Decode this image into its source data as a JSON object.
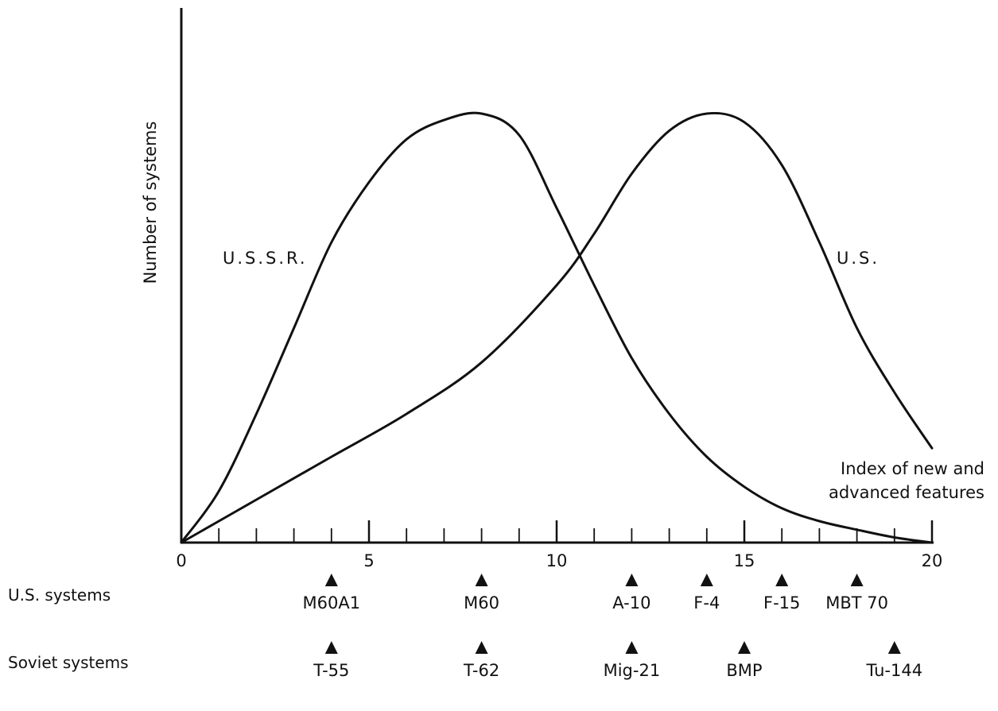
{
  "chart_data": {
    "type": "line",
    "xlabel_lines": [
      "Index of new and",
      "advanced features"
    ],
    "ylabel": "Number of systems",
    "xlim": [
      0,
      20
    ],
    "x_ticks": [
      0,
      5,
      10,
      15,
      20
    ],
    "series": [
      {
        "name": "U.S.S.R.",
        "color": "#111111",
        "points": [
          [
            0,
            0
          ],
          [
            1,
            0.12
          ],
          [
            2,
            0.3
          ],
          [
            3,
            0.5
          ],
          [
            4,
            0.7
          ],
          [
            5,
            0.84
          ],
          [
            6,
            0.94
          ],
          [
            7,
            0.985
          ],
          [
            8,
            1.0
          ],
          [
            9,
            0.95
          ],
          [
            10,
            0.78
          ],
          [
            11,
            0.6
          ],
          [
            12,
            0.43
          ],
          [
            13,
            0.3
          ],
          [
            14,
            0.2
          ],
          [
            15,
            0.13
          ],
          [
            16,
            0.08
          ],
          [
            17,
            0.05
          ],
          [
            18,
            0.03
          ],
          [
            19,
            0.012
          ],
          [
            20,
            0.0
          ]
        ]
      },
      {
        "name": "U.S.",
        "color": "#111111",
        "points": [
          [
            0,
            0
          ],
          [
            2,
            0.1
          ],
          [
            4,
            0.2
          ],
          [
            6,
            0.3
          ],
          [
            8,
            0.42
          ],
          [
            10,
            0.6
          ],
          [
            11,
            0.72
          ],
          [
            12,
            0.86
          ],
          [
            13,
            0.96
          ],
          [
            14,
            1.0
          ],
          [
            15,
            0.98
          ],
          [
            16,
            0.88
          ],
          [
            17,
            0.7
          ],
          [
            18,
            0.5
          ],
          [
            19,
            0.35
          ],
          [
            20,
            0.22
          ]
        ]
      }
    ],
    "curve_labels": [
      {
        "text": "U.S.S.R.",
        "series": "U.S.S.R."
      },
      {
        "text": "U.S.",
        "series": "U.S."
      }
    ],
    "markers": [
      {
        "row_label": "U.S. systems",
        "items": [
          {
            "label": "M60A1",
            "x": 4
          },
          {
            "label": "M60",
            "x": 8
          },
          {
            "label": "A-10",
            "x": 12
          },
          {
            "label": "F-4",
            "x": 14
          },
          {
            "label": "F-15",
            "x": 16
          },
          {
            "label": "MBT 70",
            "x": 18
          }
        ]
      },
      {
        "row_label": "Soviet systems",
        "items": [
          {
            "label": "T-55",
            "x": 4
          },
          {
            "label": "T-62",
            "x": 8
          },
          {
            "label": "Mig-21",
            "x": 12
          },
          {
            "label": "BMP",
            "x": 15
          },
          {
            "label": "Tu-144",
            "x": 19
          }
        ]
      }
    ]
  }
}
